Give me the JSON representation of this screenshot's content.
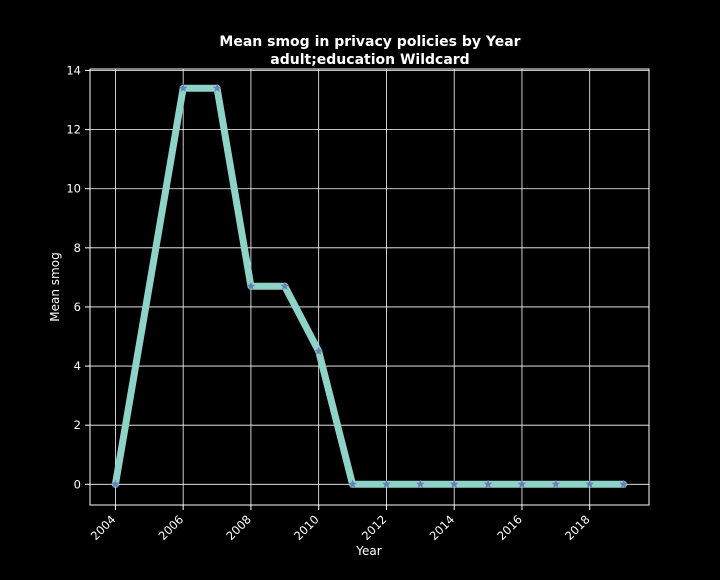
{
  "chart_data": {
    "type": "line",
    "title": "Mean smog in privacy policies by Year",
    "subtitle": "adult;education Wildcard",
    "xlabel": "Year",
    "ylabel": "Mean smog",
    "x": [
      2004,
      2006,
      2007,
      2008,
      2009,
      2010,
      2011,
      2012,
      2013,
      2014,
      2015,
      2016,
      2017,
      2018,
      2019
    ],
    "series": [
      {
        "values": [
          0,
          13.4,
          13.4,
          6.7,
          6.7,
          4.5,
          0,
          0,
          0,
          0,
          0,
          0,
          0,
          0,
          0
        ],
        "line_color": "#8dd3c7",
        "marker_color": "#6a7fb8",
        "marker": "star"
      }
    ],
    "xlim": [
      2003.25,
      2019.75
    ],
    "ylim": [
      -0.7,
      14.05
    ],
    "xticks": [
      2004,
      2006,
      2008,
      2010,
      2012,
      2014,
      2016,
      2018
    ],
    "yticks": [
      0,
      2,
      4,
      6,
      8,
      10,
      12,
      14
    ],
    "grid": true,
    "background": "#000000",
    "foreground": "#ffffff"
  }
}
